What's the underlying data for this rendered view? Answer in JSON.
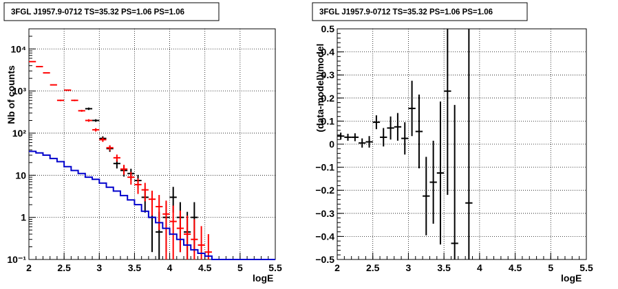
{
  "chart_data": [
    {
      "type": "histogram",
      "title": "3FGL J1957.9-0712 TS=35.32 PS=1.06 PS=1.06",
      "xlabel": "logE",
      "ylabel": "Nb of counts",
      "xlim": [
        2,
        5.5
      ],
      "ylim": [
        0.1,
        30000
      ],
      "yscale": "log",
      "grid": true,
      "x_tick_labels": [
        "2",
        "2.5",
        "3",
        "3.5",
        "4",
        "4.5",
        "5",
        "5.5"
      ],
      "y_tick_labels": [
        "10⁻¹",
        "1",
        "10",
        "10²",
        "10³",
        "10⁴"
      ],
      "series": [
        {
          "color": "#000000",
          "style": "errorbar",
          "x": [
            2.85,
            2.95,
            3.05,
            3.15,
            3.25,
            3.35,
            3.45,
            3.55,
            3.65,
            3.75,
            3.85,
            3.95,
            4.05,
            4.15,
            4.25,
            4.35
          ],
          "y": [
            380,
            200,
            75,
            43,
            19,
            13,
            11,
            7.5,
            3,
            1,
            0.45,
            1,
            3,
            1,
            0.45,
            1
          ],
          "yerr_low": [
            25,
            14,
            9,
            7,
            4.5,
            3.7,
            3.3,
            2.7,
            1.7,
            0.85,
            0.45,
            0.85,
            1.7,
            0.85,
            0.45,
            0.85
          ],
          "yerr_high": [
            25,
            14,
            9,
            7,
            4.5,
            3.7,
            3.3,
            2.7,
            1.7,
            1.3,
            0.9,
            1.3,
            2.3,
            1.3,
            0.9,
            1.3
          ]
        },
        {
          "color": "#ff0000",
          "style": "errorbar",
          "x": [
            2.05,
            2.15,
            2.25,
            2.35,
            2.45,
            2.55,
            2.65,
            2.75,
            2.85,
            2.95,
            3.05,
            3.15,
            3.25,
            3.35,
            3.45,
            3.55,
            3.65,
            3.75,
            3.85,
            3.95,
            4.05,
            4.15,
            4.25,
            4.35,
            4.45,
            4.55
          ],
          "y": [
            5000,
            3800,
            2700,
            1400,
            600,
            1050,
            600,
            340,
            200,
            120,
            70,
            45,
            26,
            14,
            9,
            6,
            4.5,
            2.7,
            1.8,
            1.2,
            0.8,
            0.55,
            0.4,
            0.3,
            0.22,
            0.15
          ],
          "yerr_low": [
            70,
            60,
            50,
            37,
            24,
            32,
            24,
            18,
            14,
            11,
            8,
            6.5,
            5,
            3.7,
            3,
            2.4,
            2.1,
            1.6,
            1.3,
            1.1,
            0.75,
            0.4,
            0.3,
            0.2,
            0.12,
            0.05
          ],
          "yerr_high": [
            70,
            60,
            50,
            37,
            24,
            32,
            24,
            18,
            14,
            11,
            8,
            6.5,
            5,
            3.7,
            3,
            2.4,
            2.1,
            1.6,
            1.6,
            1.3,
            1.1,
            0.9,
            0.7,
            0.6,
            0.4,
            0.25
          ]
        },
        {
          "color": "#0000cc",
          "style": "step",
          "x_edges": [
            2.0,
            2.1,
            2.2,
            2.3,
            2.4,
            2.5,
            2.6,
            2.7,
            2.8,
            2.9,
            3.0,
            3.1,
            3.2,
            3.3,
            3.4,
            3.5,
            3.6,
            3.7,
            3.8,
            3.9,
            4.0,
            4.1,
            4.2,
            4.3,
            4.4,
            4.5,
            4.6,
            5.5
          ],
          "y": [
            37,
            34,
            30,
            25,
            21,
            16,
            13,
            11,
            9,
            8,
            6.5,
            5.2,
            4.2,
            3.3,
            2.6,
            2.0,
            1.4,
            1.0,
            0.75,
            0.55,
            0.4,
            0.3,
            0.22,
            0.17,
            0.14,
            0.12,
            0.1
          ]
        }
      ]
    },
    {
      "type": "scatter",
      "title": "3FGL J1957.9-0712 TS=35.32 PS=1.06 PS=1.06",
      "xlabel": "logE",
      "ylabel": "(data-model)/model",
      "xlim": [
        2,
        5.5
      ],
      "ylim": [
        -0.5,
        0.5
      ],
      "grid": true,
      "x_tick_labels": [
        "2",
        "2.5",
        "3",
        "3.5",
        "4",
        "4.5",
        "5",
        "5.5"
      ],
      "y_tick_labels": [
        "0.5",
        "0.4",
        "0.3",
        "0.2",
        "0.1",
        "0",
        "−0.1",
        "−0.2",
        "−0.3",
        "−0.4",
        "−0.5"
      ],
      "series": [
        {
          "color": "#000000",
          "style": "errorbar",
          "x": [
            2.05,
            2.15,
            2.25,
            2.35,
            2.45,
            2.55,
            2.65,
            2.75,
            2.85,
            2.95,
            3.05,
            3.15,
            3.25,
            3.35,
            3.45,
            3.55,
            3.65,
            3.85
          ],
          "y": [
            0.035,
            0.03,
            0.03,
            0.005,
            0.01,
            0.095,
            0.03,
            0.07,
            0.075,
            0.025,
            0.155,
            0.055,
            -0.225,
            -0.165,
            -0.125,
            0.23,
            -0.43,
            -0.255
          ],
          "yerr": [
            0.015,
            0.015,
            0.017,
            0.02,
            0.025,
            0.03,
            0.04,
            0.05,
            0.06,
            0.07,
            0.12,
            0.16,
            0.17,
            0.18,
            0.31,
            0.45,
            0.6,
            0.9
          ]
        }
      ]
    }
  ]
}
